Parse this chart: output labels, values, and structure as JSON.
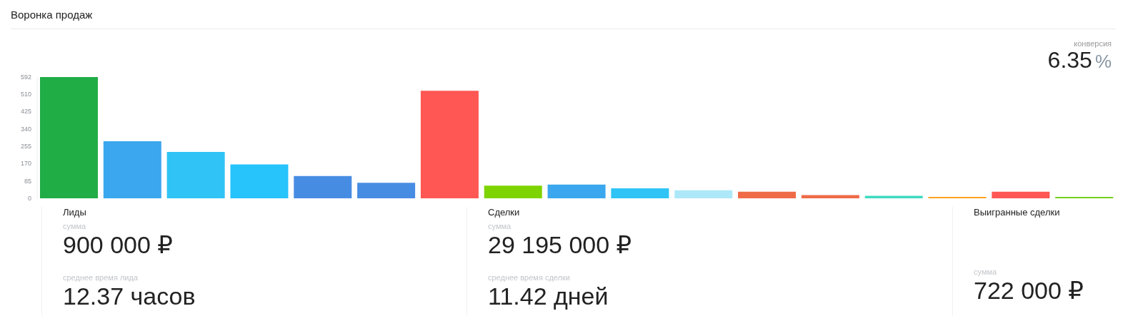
{
  "chart_data": {
    "type": "bar",
    "title": "Воронка продаж",
    "categories": [
      null,
      null,
      null,
      null,
      null,
      null,
      null,
      null,
      null,
      null,
      null,
      null,
      null,
      null,
      null,
      null,
      null
    ],
    "values": [
      592,
      279,
      226,
      165,
      109,
      76,
      525,
      62,
      67,
      49,
      39,
      32,
      16,
      12,
      7,
      32,
      7
    ],
    "colors": [
      "#21ad46",
      "#3ba7ee",
      "#2fc4f5",
      "#27c3fb",
      "#478ce3",
      "#478ce3",
      "#ff5753",
      "#7ed400",
      "#3ba7ee",
      "#2fc4f5",
      "#ade8f8",
      "#ef6b47",
      "#ef6b47",
      "#3ed9c0",
      "#ffa21f",
      "#ff5753",
      "#74cf1e"
    ],
    "ylim": [
      0,
      592
    ],
    "yticks": [
      0,
      85,
      170,
      255,
      340,
      425,
      510,
      592
    ],
    "grid": false,
    "annotations": [
      "конверсия",
      "6.35",
      "%",
      "Лиды",
      "сумма",
      "900 000 ₽",
      "среднее время лида",
      "12.37 часов",
      "Сделки",
      "сумма",
      "29 195 000 ₽",
      "среднее время сделки",
      "11.42 дней",
      "Выигранные сделки",
      "сумма",
      "722 000 ₽"
    ]
  }
}
